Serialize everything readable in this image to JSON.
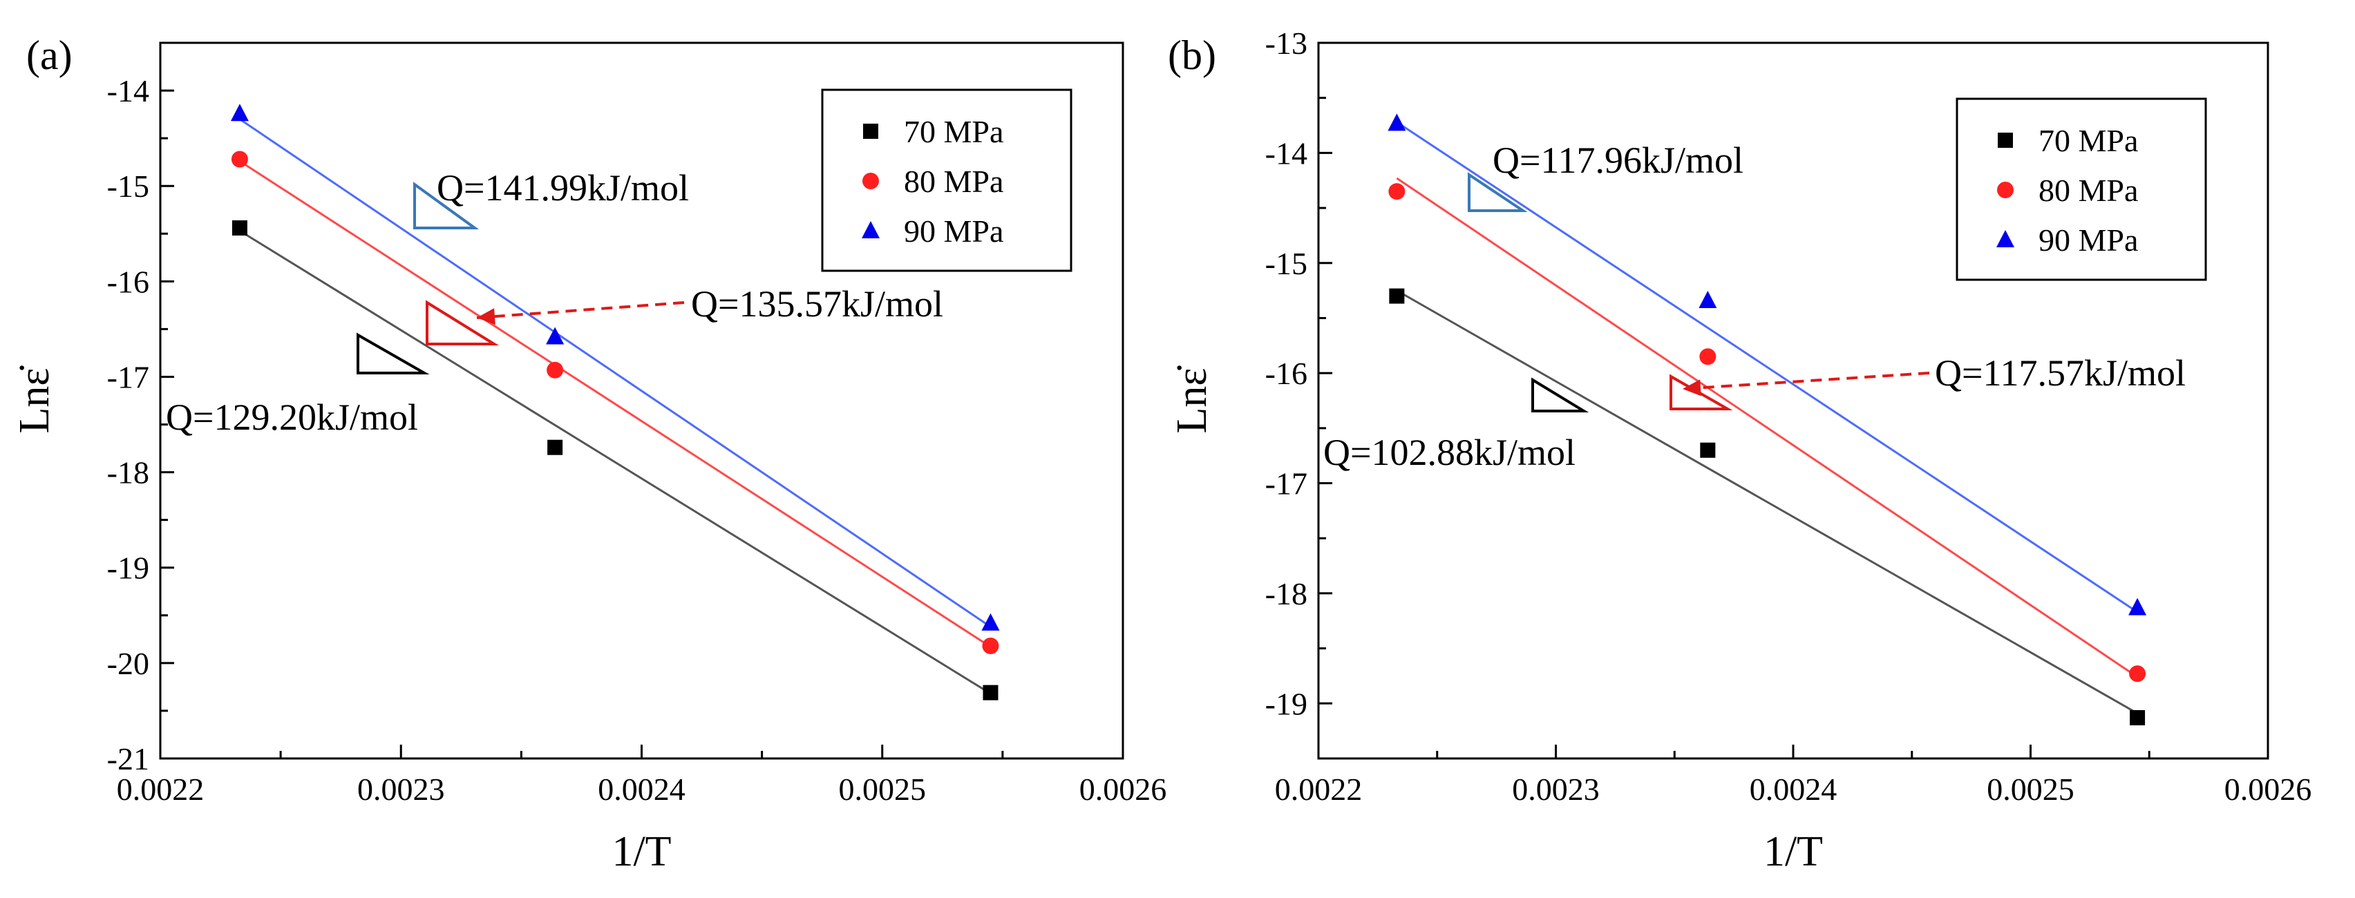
{
  "chart_data": [
    {
      "type": "scatter",
      "panel_label": "(a)",
      "xlabel": "1/T",
      "ylabel": "Lnε̇",
      "xlim": [
        0.0022,
        0.0026
      ],
      "ylim": [
        -21,
        -13.5
      ],
      "xticks": [
        "0.0022",
        "0.0023",
        "0.0024",
        "0.0025",
        "0.0026"
      ],
      "yticks": [
        "-21",
        "-20",
        "-19",
        "-18",
        "-17",
        "-16",
        "-15",
        "-14"
      ],
      "x": [
        0.002233,
        0.002364,
        0.002545
      ],
      "series": [
        {
          "name": "70 MPa",
          "marker": "square",
          "color": "#000000",
          "line_color": "#555555",
          "values": [
            -15.44,
            -17.74,
            -20.31
          ],
          "fit": [
            -15.47,
            -20.32
          ]
        },
        {
          "name": "80 MPa",
          "marker": "circle",
          "color": "#ff1f1f",
          "line_color": "#ff4a4a",
          "values": [
            -14.72,
            -16.93,
            -19.82
          ],
          "fit": [
            -14.74,
            -19.83
          ]
        },
        {
          "name": "90 MPa",
          "marker": "triangle",
          "color": "#0000ee",
          "line_color": "#4d6bff",
          "values": [
            -14.24,
            -16.58,
            -19.58
          ],
          "fit": [
            -14.3,
            -19.62
          ]
        }
      ],
      "annotations": [
        {
          "text": "Q=141.99kJ/mol",
          "series": "90 MPa",
          "color": "#3a78b8"
        },
        {
          "text": "Q=135.57kJ/mol",
          "series": "80 MPa",
          "color": "#e01818",
          "arrow": true
        },
        {
          "text": "Q=129.20kJ/mol",
          "series": "70 MPa",
          "color": "#000000"
        }
      ]
    },
    {
      "type": "scatter",
      "panel_label": "(b)",
      "xlabel": "1/T",
      "ylabel": "Lnε̇",
      "xlim": [
        0.0022,
        0.0026
      ],
      "ylim": [
        -19.5,
        -13
      ],
      "xticks": [
        "0.0022",
        "0.0023",
        "0.0024",
        "0.0025",
        "0.0026"
      ],
      "yticks": [
        "-19",
        "-18",
        "-17",
        "-16",
        "-15",
        "-14",
        "-13"
      ],
      "x": [
        0.002233,
        0.002364,
        0.002545
      ],
      "series": [
        {
          "name": "70 MPa",
          "marker": "square",
          "color": "#000000",
          "line_color": "#555555",
          "values": [
            -15.3,
            -16.7,
            -19.13
          ],
          "fit": [
            -15.25,
            -19.09
          ]
        },
        {
          "name": "80 MPa",
          "marker": "circle",
          "color": "#ff1f1f",
          "line_color": "#ff4a4a",
          "values": [
            -14.35,
            -15.85,
            -18.73
          ],
          "fit": [
            -14.23,
            -18.76
          ]
        },
        {
          "name": "90 MPa",
          "marker": "triangle",
          "color": "#0000ee",
          "line_color": "#4d6bff",
          "values": [
            -13.73,
            -15.34,
            -18.13
          ],
          "fit": [
            -13.72,
            -18.17
          ]
        }
      ],
      "annotations": [
        {
          "text": "Q=117.96kJ/mol",
          "series": "90 MPa",
          "color": "#3a78b8"
        },
        {
          "text": "Q=117.57kJ/mol",
          "series": "80 MPa",
          "color": "#e01818",
          "arrow": true
        },
        {
          "text": "Q=102.88kJ/mol",
          "series": "70 MPa",
          "color": "#000000"
        }
      ]
    }
  ]
}
